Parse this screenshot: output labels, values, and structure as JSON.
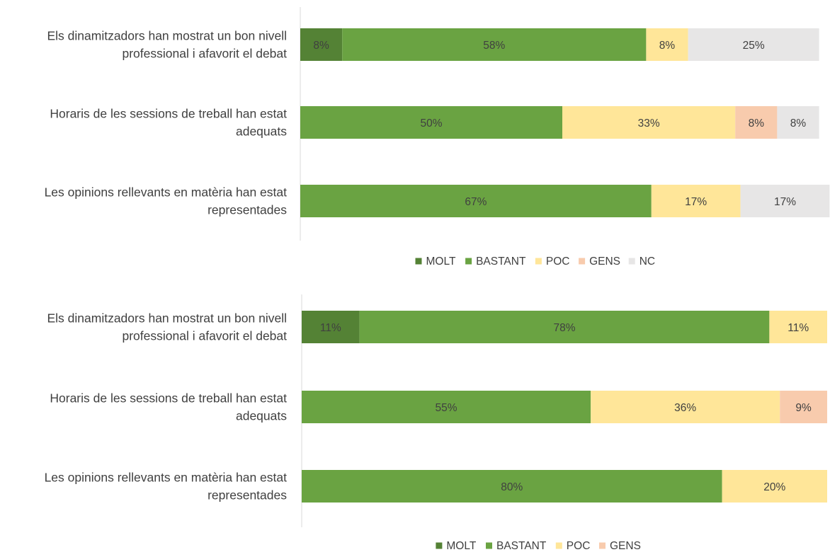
{
  "colors": {
    "MOLT": "#548235",
    "BASTANT": "#6AA342",
    "POC": "#FFE699",
    "GENS": "#F8CBAD",
    "NC": "#E7E6E6"
  },
  "chart_data": [
    {
      "type": "bar",
      "orientation": "horizontal",
      "stacked": true,
      "title": "",
      "categories": [
        "Els dinamitzadors han mostrat un bon nivell professional i afavorit el debat",
        "Horaris de les sessions de treball han estat adequats",
        "Les opinions rellevants en matèria han estat representades"
      ],
      "category_lines": [
        [
          "Els dinamitzadors han mostrat un bon nivell",
          "professional i afavorit el debat"
        ],
        [
          "Horaris de les sessions de treball han estat",
          "adequats"
        ],
        [
          "Les opinions rellevants en matèria han estat",
          "representades"
        ]
      ],
      "series": [
        {
          "name": "MOLT",
          "values": [
            8,
            0,
            0
          ],
          "labels": [
            "8%",
            "",
            ""
          ]
        },
        {
          "name": "BASTANT",
          "values": [
            58,
            50,
            67
          ],
          "labels": [
            "58%",
            "50%",
            "67%"
          ]
        },
        {
          "name": "POC",
          "values": [
            8,
            33,
            17
          ],
          "labels": [
            "8%",
            "33%",
            "17%"
          ]
        },
        {
          "name": "GENS",
          "values": [
            0,
            8,
            0
          ],
          "labels": [
            "",
            "8%",
            ""
          ]
        },
        {
          "name": "NC",
          "values": [
            25,
            8,
            17
          ],
          "labels": [
            "25%",
            "8%",
            "17%"
          ]
        }
      ],
      "xlim": [
        0,
        100
      ],
      "legend": [
        "MOLT",
        "BASTANT",
        "POC",
        "GENS",
        "NC"
      ],
      "legend_position": "bottom"
    },
    {
      "type": "bar",
      "orientation": "horizontal",
      "stacked": true,
      "title": "",
      "categories": [
        "Els dinamitzadors han mostrat un bon nivell professional i afavorit el debat",
        "Horaris de les sessions de treball han estat adequats",
        "Les opinions rellevants en matèria han estat representades"
      ],
      "category_lines": [
        [
          "Els dinamitzadors han mostrat un bon nivell",
          "professional i afavorit el debat"
        ],
        [
          "Horaris de les sessions de treball han estat",
          "adequats"
        ],
        [
          "Les opinions rellevants en matèria han estat",
          "representades"
        ]
      ],
      "series": [
        {
          "name": "MOLT",
          "values": [
            11,
            0,
            0
          ],
          "labels": [
            "11%",
            "",
            ""
          ]
        },
        {
          "name": "BASTANT",
          "values": [
            78,
            55,
            80
          ],
          "labels": [
            "78%",
            "55%",
            "80%"
          ]
        },
        {
          "name": "POC",
          "values": [
            11,
            36,
            20
          ],
          "labels": [
            "11%",
            "36%",
            "20%"
          ]
        },
        {
          "name": "GENS",
          "values": [
            0,
            9,
            0
          ],
          "labels": [
            "",
            "9%",
            ""
          ]
        }
      ],
      "xlim": [
        0,
        100
      ],
      "legend": [
        "MOLT",
        "BASTANT",
        "POC",
        "GENS"
      ],
      "legend_position": "bottom"
    }
  ]
}
